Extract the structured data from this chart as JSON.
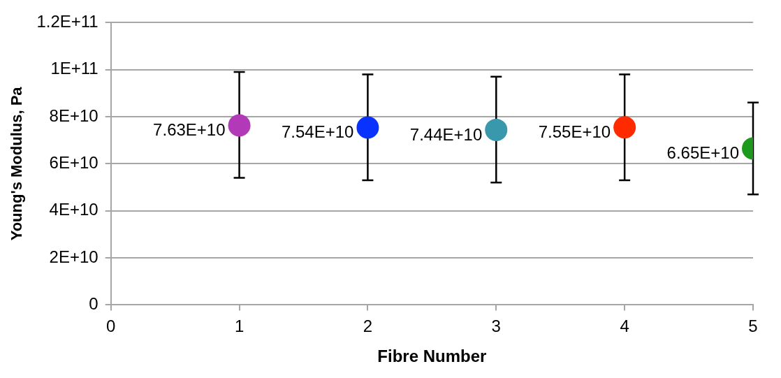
{
  "chart_data": {
    "type": "scatter",
    "xlabel": "Fibre Number",
    "ylabel": "Young's Modulus, Pa",
    "x": [
      1,
      2,
      3,
      4,
      5
    ],
    "values": [
      76300000000,
      75400000000,
      74400000000,
      75500000000,
      66500000000
    ],
    "colors": [
      "#b23ab8",
      "#0a32ff",
      "#3a98ad",
      "#ff2a00",
      "#1d9a1d"
    ],
    "errors": [
      [
        54000000000,
        99000000000
      ],
      [
        53000000000,
        98000000000
      ],
      [
        52000000000,
        97000000000
      ],
      [
        53000000000,
        98000000000
      ],
      [
        47000000000,
        86000000000
      ]
    ],
    "value_labels": [
      "7.63E+10",
      "7.54E+10",
      "7.44E+10",
      "7.55E+10",
      "6.65E+10"
    ],
    "marker": "circle",
    "grid": "y",
    "legend": false,
    "xlim": [
      0,
      5
    ],
    "xticks": [
      0,
      1,
      2,
      3,
      4,
      5
    ],
    "ylim": [
      0,
      120000000000
    ],
    "yticks": [
      0,
      {
        "value": 20000000000,
        "label": "2E+10"
      },
      {
        "value": 40000000000,
        "label": "4E+10"
      },
      {
        "value": 60000000000,
        "label": "6E+10"
      },
      {
        "value": 80000000000,
        "label": "8E+10"
      },
      {
        "value": 100000000000,
        "label": "1E+11"
      },
      {
        "value": 120000000000,
        "label": "1.2E+11"
      }
    ]
  }
}
